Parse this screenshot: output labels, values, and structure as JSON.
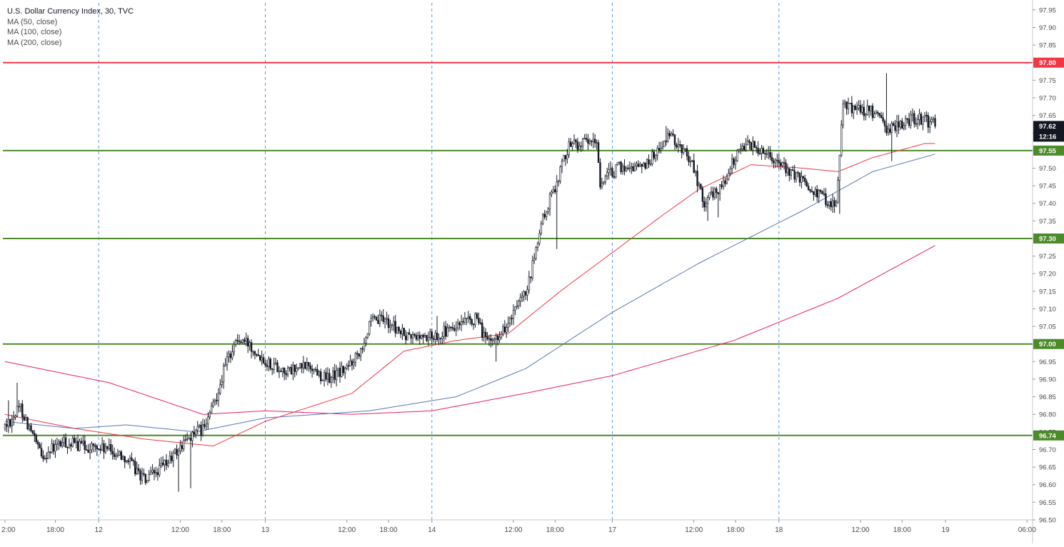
{
  "chart_data": {
    "type": "candlestick",
    "title": "U.S. Dollar Currency Index, 30, TVC",
    "indicators": [
      "MA (50, close)",
      "MA (100, close)",
      "MA (200, close)"
    ],
    "ylim": [
      96.5,
      97.97
    ],
    "y_ticks": [
      "97.95",
      "97.90",
      "97.85",
      "97.80",
      "97.75",
      "97.70",
      "97.65",
      "97.60",
      "97.55",
      "97.50",
      "97.45",
      "97.40",
      "97.35",
      "97.30",
      "97.25",
      "97.20",
      "97.15",
      "97.10",
      "97.05",
      "97.00",
      "96.95",
      "96.90",
      "96.85",
      "96.80",
      "96.75",
      "96.70",
      "96.65",
      "96.60",
      "96.55",
      "96.50"
    ],
    "x_ticks": [
      "2:00",
      "18:00",
      "12",
      "12:00",
      "18:00",
      "13",
      "12:00",
      "18:00",
      "14",
      "12:00",
      "18:00",
      "17",
      "12:00",
      "18:00",
      "18",
      "12:00",
      "18:00",
      "19",
      "06:00"
    ],
    "x_tick_bars": [
      0,
      29,
      54,
      101,
      125,
      150,
      197,
      221,
      246,
      293,
      317,
      350,
      397,
      421,
      446,
      493,
      517,
      542,
      589
    ],
    "day_separator_bars": [
      54,
      150,
      246,
      350,
      446
    ],
    "horizontal_levels": [
      {
        "value": 97.8,
        "label": "97.80",
        "color": "#f23645"
      },
      {
        "value": 97.55,
        "label": "97.55",
        "color": "#4c8a2a"
      },
      {
        "value": 97.3,
        "label": "97.30",
        "color": "#4c8a2a"
      },
      {
        "value": 97.0,
        "label": "97.00",
        "color": "#4c8a2a"
      },
      {
        "value": 96.74,
        "label": "96.74",
        "color": "#4c8a2a"
      }
    ],
    "last_price": {
      "label": "97.62",
      "countdown": "12:16"
    },
    "colors": {
      "up": "#ffffff",
      "down": "#131722",
      "ma50": "#f23645",
      "ma100": "#5b76b9",
      "ma200": "#e91e63",
      "separator": "#5b9bd5"
    },
    "anchors": [
      [
        0,
        96.76
      ],
      [
        10,
        96.82
      ],
      [
        22,
        96.68
      ],
      [
        34,
        96.72
      ],
      [
        46,
        96.71
      ],
      [
        60,
        96.7
      ],
      [
        70,
        96.68
      ],
      [
        82,
        96.61
      ],
      [
        94,
        96.66
      ],
      [
        108,
        96.74
      ],
      [
        116,
        96.76
      ],
      [
        122,
        96.84
      ],
      [
        128,
        96.94
      ],
      [
        134,
        97.01
      ],
      [
        142,
        97.0
      ],
      [
        152,
        96.95
      ],
      [
        164,
        96.92
      ],
      [
        176,
        96.94
      ],
      [
        186,
        96.9
      ],
      [
        198,
        96.93
      ],
      [
        206,
        96.99
      ],
      [
        212,
        97.06
      ],
      [
        220,
        97.07
      ],
      [
        232,
        97.02
      ],
      [
        246,
        97.02
      ],
      [
        258,
        97.04
      ],
      [
        272,
        97.07
      ],
      [
        280,
        97.0
      ],
      [
        290,
        97.05
      ],
      [
        302,
        97.15
      ],
      [
        310,
        97.34
      ],
      [
        318,
        97.45
      ],
      [
        326,
        97.57
      ],
      [
        342,
        97.57
      ],
      [
        344,
        97.46
      ],
      [
        354,
        97.5
      ],
      [
        370,
        97.51
      ],
      [
        384,
        97.59
      ],
      [
        396,
        97.53
      ],
      [
        404,
        97.4
      ],
      [
        414,
        97.45
      ],
      [
        426,
        97.57
      ],
      [
        440,
        97.55
      ],
      [
        452,
        97.49
      ],
      [
        462,
        97.46
      ],
      [
        474,
        97.41
      ],
      [
        480,
        97.4
      ],
      [
        484,
        97.68
      ],
      [
        500,
        97.66
      ],
      [
        510,
        97.61
      ],
      [
        524,
        97.64
      ],
      [
        536,
        97.63
      ]
    ],
    "spikes": [
      {
        "bar": 2,
        "high": 96.84
      },
      {
        "bar": 7,
        "high": 96.89
      },
      {
        "bar": 100,
        "low": 96.58
      },
      {
        "bar": 107,
        "low": 96.59
      },
      {
        "bar": 249,
        "high": 97.08
      },
      {
        "bar": 283,
        "low": 96.95
      },
      {
        "bar": 318,
        "low": 97.27
      },
      {
        "bar": 381,
        "high": 97.62
      },
      {
        "bar": 405,
        "low": 97.35
      },
      {
        "bar": 411,
        "low": 97.36
      },
      {
        "bar": 481,
        "low": 97.37
      },
      {
        "bar": 508,
        "high": 97.77
      },
      {
        "bar": 511,
        "low": 97.52
      }
    ],
    "ma200_points": [
      [
        0,
        96.95
      ],
      [
        60,
        96.89
      ],
      [
        114,
        96.8
      ],
      [
        150,
        96.81
      ],
      [
        200,
        96.8
      ],
      [
        246,
        96.81
      ],
      [
        300,
        96.86
      ],
      [
        350,
        96.91
      ],
      [
        420,
        97.01
      ],
      [
        480,
        97.13
      ],
      [
        536,
        97.28
      ]
    ],
    "ma100_points": [
      [
        0,
        96.78
      ],
      [
        40,
        96.76
      ],
      [
        70,
        96.77
      ],
      [
        110,
        96.75
      ],
      [
        150,
        96.79
      ],
      [
        210,
        96.81
      ],
      [
        260,
        96.85
      ],
      [
        300,
        96.93
      ],
      [
        350,
        97.09
      ],
      [
        400,
        97.23
      ],
      [
        460,
        97.38
      ],
      [
        500,
        97.49
      ],
      [
        536,
        97.54
      ]
    ],
    "ma50_points": [
      [
        0,
        96.8
      ],
      [
        40,
        96.76
      ],
      [
        80,
        96.73
      ],
      [
        120,
        96.71
      ],
      [
        150,
        96.78
      ],
      [
        200,
        96.86
      ],
      [
        230,
        96.98
      ],
      [
        260,
        97.01
      ],
      [
        290,
        97.03
      ],
      [
        320,
        97.15
      ],
      [
        350,
        97.26
      ],
      [
        380,
        97.37
      ],
      [
        400,
        97.44
      ],
      [
        430,
        97.51
      ],
      [
        460,
        97.5
      ],
      [
        480,
        97.49
      ],
      [
        500,
        97.53
      ],
      [
        530,
        97.57
      ],
      [
        536,
        97.57
      ]
    ]
  }
}
